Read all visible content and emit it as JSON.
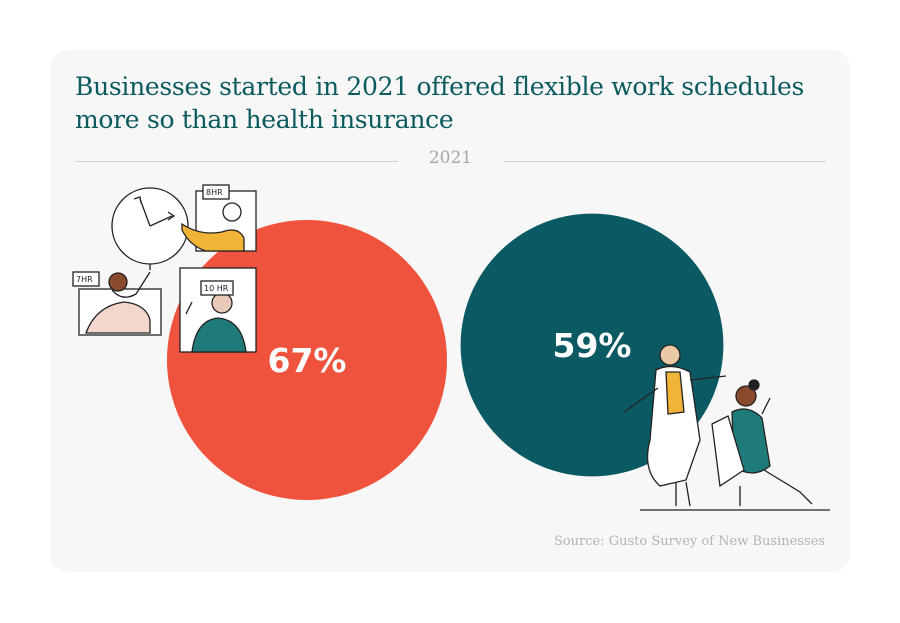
{
  "title": "Businesses started in 2021 offered flexible work schedules more so than health insurance",
  "year": "2021",
  "source": "Source: Gusto Survey of New Businesses",
  "colors": {
    "flexible": "#ef533d",
    "health": "#0b5a63",
    "title": "#0b5a5e"
  },
  "chart_data": {
    "type": "bubble",
    "title": "Businesses started in 2021 offered flexible work schedules more so than health insurance",
    "subtitle": "2021",
    "series": [
      {
        "value": 67,
        "label": "67%",
        "color": "#ef533d"
      },
      {
        "value": 59,
        "label": "59%",
        "color": "#0b5a63"
      }
    ]
  },
  "illustrations": [
    {
      "icon": "work-schedule-clock-icon",
      "tags": [
        "7HR",
        "8HR",
        "10 HR"
      ]
    },
    {
      "icon": "doctor-patient-icon"
    }
  ]
}
